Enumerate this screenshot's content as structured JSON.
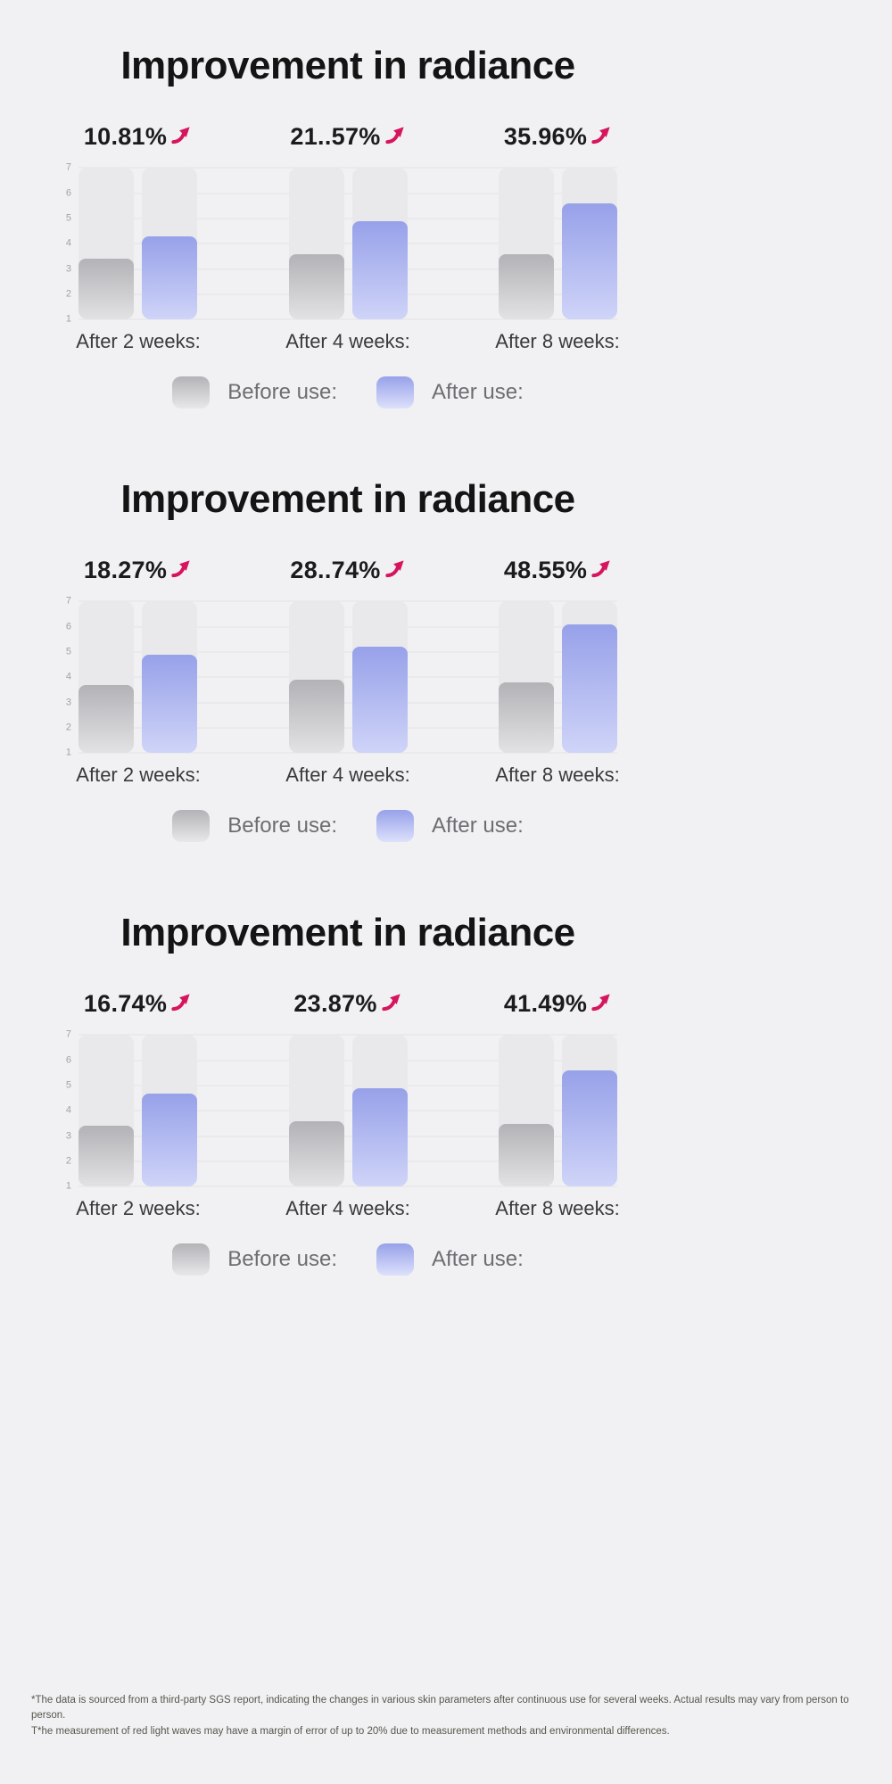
{
  "page": {
    "background": "#f1f1f3"
  },
  "colors": {
    "accent_arrow": "#d6155f",
    "before_top": "#b3b3b7",
    "before_bottom": "#e2e2e4",
    "after_top": "#97a1e9",
    "after_bottom": "#cfd4f8"
  },
  "legend": {
    "before_label": "Before use:",
    "after_label": "After use:"
  },
  "footnote": {
    "line1": "*The data is sourced from a third-party SGS report, indicating the changes in various skin parameters after continuous use for several weeks. Actual results may vary from person to person.",
    "line2": "T*he measurement of red light waves may have a margin of error of up to 20% due to measurement methods and environmental differences."
  },
  "chart_data": [
    {
      "type": "bar",
      "title": "Improvement in radiance",
      "categories": [
        "After 2 weeks:",
        "After 4 weeks:",
        "After 8 weeks:"
      ],
      "series": [
        {
          "name": "Before use:",
          "values": [
            3.4,
            3.6,
            3.6
          ]
        },
        {
          "name": "After use:",
          "values": [
            4.3,
            4.9,
            5.6
          ]
        }
      ],
      "annotations": [
        "10.81%",
        "21..57%",
        "35.96%"
      ],
      "ylim": [
        1,
        7
      ],
      "yticks": [
        1,
        2,
        3,
        4,
        5,
        6,
        7
      ],
      "grid": true,
      "legend_position": "bottom"
    },
    {
      "type": "bar",
      "title": "Improvement in radiance",
      "categories": [
        "After 2 weeks:",
        "After 4 weeks:",
        "After 8 weeks:"
      ],
      "series": [
        {
          "name": "Before use:",
          "values": [
            3.7,
            3.9,
            3.8
          ]
        },
        {
          "name": "After use:",
          "values": [
            4.9,
            5.2,
            6.1
          ]
        }
      ],
      "annotations": [
        "18.27%",
        "28..74%",
        "48.55%"
      ],
      "ylim": [
        1,
        7
      ],
      "yticks": [
        1,
        2,
        3,
        4,
        5,
        6,
        7
      ],
      "grid": true,
      "legend_position": "bottom"
    },
    {
      "type": "bar",
      "title": "Improvement in radiance",
      "categories": [
        "After 2 weeks:",
        "After 4 weeks:",
        "After 8 weeks:"
      ],
      "series": [
        {
          "name": "Before use:",
          "values": [
            3.4,
            3.6,
            3.5
          ]
        },
        {
          "name": "After use:",
          "values": [
            4.7,
            4.9,
            5.6
          ]
        }
      ],
      "annotations": [
        "16.74%",
        "23.87%",
        "41.49%"
      ],
      "ylim": [
        1,
        7
      ],
      "yticks": [
        1,
        2,
        3,
        4,
        5,
        6,
        7
      ],
      "grid": true,
      "legend_position": "bottom"
    }
  ]
}
